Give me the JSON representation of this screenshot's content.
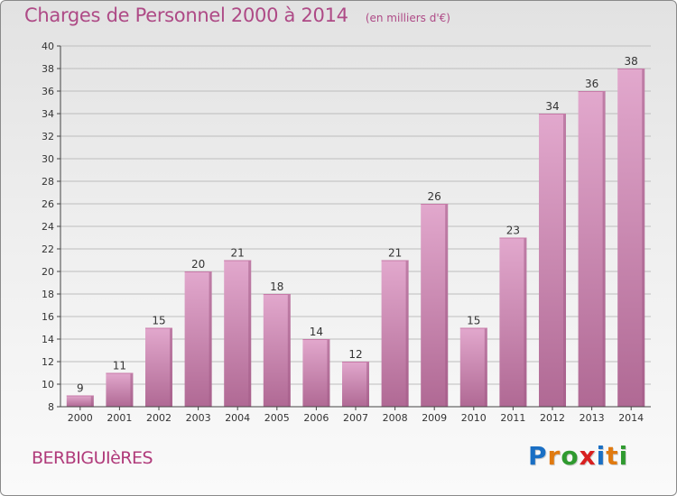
{
  "header": {
    "title": "Charges de Personnel 2000 à 2014",
    "subtitle": "(en milliers d'€)"
  },
  "footer": {
    "commune": "BERBIGUIèRES",
    "logo_text": "Proxiti",
    "logo_colors": [
      "#1a6fc4",
      "#e07a10",
      "#2f9a2f",
      "#d82020",
      "#1a6fc4",
      "#e07a10",
      "#2f9a2f"
    ]
  },
  "colors": {
    "bar_top": "#e2a8cd",
    "bar_bottom": "#b06994",
    "bar_side": "#a25b87",
    "label": "#333333",
    "axis": "#444444",
    "grid": "#bdbdbd"
  },
  "chart_data": {
    "type": "bar",
    "title": "Charges de Personnel 2000 à 2014",
    "subtitle": "(en milliers d'€)",
    "categories": [
      "2000",
      "2001",
      "2002",
      "2003",
      "2004",
      "2005",
      "2006",
      "2007",
      "2008",
      "2009",
      "2010",
      "2011",
      "2012",
      "2013",
      "2014"
    ],
    "values": [
      9,
      11,
      15,
      20,
      21,
      18,
      14,
      12,
      21,
      26,
      15,
      23,
      34,
      36,
      38
    ],
    "ylim": [
      8,
      40
    ],
    "yticks": [
      8,
      10,
      12,
      14,
      16,
      18,
      20,
      22,
      24,
      26,
      28,
      30,
      32,
      34,
      36,
      38,
      40
    ],
    "grid": true,
    "data_labels": true
  }
}
